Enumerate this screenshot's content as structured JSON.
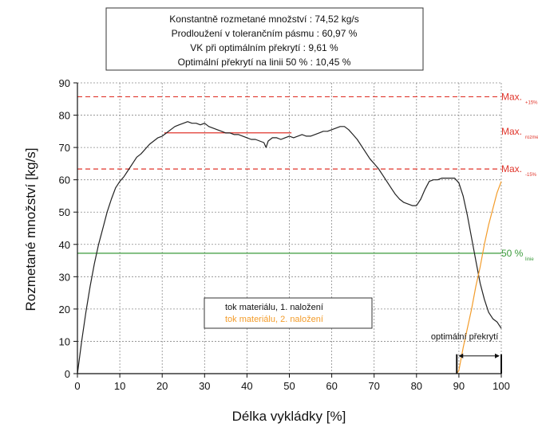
{
  "info_box": {
    "lines": [
      "Konstantně rozmetané množství : 74,52 kg/s",
      "Prodloužení v tolerančním pásmu : 60,97 %",
      "VK při optimálním překrytí : 9,61 %",
      "Optimální překrytí na linii 50 % : 10,45 %"
    ]
  },
  "chart_data": {
    "type": "line",
    "title": "",
    "xlabel": "Délka vykládky [%]",
    "ylabel": "Rozmetané množství [kg/s]",
    "xlim": [
      0,
      100
    ],
    "ylim": [
      0,
      90
    ],
    "xticks": [
      0,
      10,
      20,
      30,
      40,
      50,
      60,
      70,
      80,
      90,
      100
    ],
    "yticks": [
      0,
      10,
      20,
      30,
      40,
      50,
      60,
      70,
      80,
      90
    ],
    "grid": true,
    "series": [
      {
        "name": "tok materiálu, 1. naložení",
        "color": "#222222",
        "x": [
          0,
          1,
          2,
          3,
          4,
          5,
          6,
          7,
          8,
          9,
          10,
          11,
          12,
          13,
          14,
          15,
          16,
          17,
          18,
          19,
          20,
          21,
          22,
          23,
          24,
          25,
          26,
          27,
          28,
          29,
          30,
          31,
          32,
          33,
          34,
          35,
          36,
          37,
          38,
          39,
          40,
          41,
          42,
          43,
          44,
          44.5,
          45,
          46,
          47,
          48,
          49,
          50,
          51,
          52,
          53,
          54,
          55,
          56,
          57,
          58,
          59,
          60,
          61,
          62,
          63,
          64,
          65,
          66,
          67,
          68,
          69,
          70,
          71,
          72,
          73,
          74,
          75,
          76,
          77,
          78,
          79,
          80,
          81,
          82,
          83,
          84,
          85,
          86,
          87,
          88,
          89,
          90,
          91,
          92,
          93,
          94,
          95,
          96,
          97,
          98,
          99,
          100
        ],
        "values": [
          0,
          10,
          19,
          27,
          34,
          40,
          45,
          50,
          54,
          57.5,
          59.5,
          61,
          63,
          65,
          67,
          68,
          69.5,
          71,
          72,
          73,
          73.5,
          74.5,
          75.5,
          76.5,
          77,
          77.5,
          78,
          77.5,
          77.5,
          77,
          77.5,
          76.5,
          76,
          75.5,
          75,
          74.5,
          74.5,
          74,
          74,
          73.5,
          73,
          72.5,
          72.5,
          72,
          71.5,
          70,
          72,
          73,
          73,
          72.5,
          73,
          73.5,
          73,
          73.5,
          74,
          73.5,
          73.5,
          74,
          74.5,
          75,
          75,
          75.5,
          76,
          76.5,
          76.5,
          75.5,
          74,
          72.5,
          70.5,
          68.5,
          66.5,
          65,
          63.5,
          61.5,
          59.5,
          57.5,
          55.5,
          54,
          53,
          52.5,
          52,
          52,
          54,
          57,
          59.5,
          60,
          60,
          60.5,
          60.5,
          60.5,
          60.5,
          59,
          55,
          49,
          42,
          35,
          28,
          23,
          19,
          17,
          16,
          14
        ]
      },
      {
        "name": "tok materiálu, 2. naložení",
        "color": "#f39c2a",
        "x": [
          89.5,
          90,
          91,
          92,
          93,
          94,
          95,
          96,
          97,
          98,
          99,
          100
        ],
        "values": [
          0,
          1,
          8,
          14,
          20,
          27,
          33,
          40,
          46,
          51,
          56,
          59.5
        ]
      }
    ],
    "reference_lines": [
      {
        "value": 85.7,
        "color": "#e0352b",
        "style": "dashed",
        "label": "Max.",
        "sub": "+15%"
      },
      {
        "value": 74.52,
        "color": "#e0352b",
        "style": "solid",
        "x_range": [
          20.5,
          50.5
        ],
        "label": "Max.",
        "sub": "rozmetané množství"
      },
      {
        "value": 63.34,
        "color": "#e0352b",
        "style": "dashed",
        "label": "Max.",
        "sub": "-15%"
      },
      {
        "value": 37.26,
        "color": "#3a9a3a",
        "style": "solid",
        "label": "50 %",
        "sub": "linie"
      }
    ],
    "overlap": {
      "label": "optimální překrytí",
      "x_range": [
        89.5,
        100
      ]
    },
    "legend_position": "bottom-center"
  }
}
